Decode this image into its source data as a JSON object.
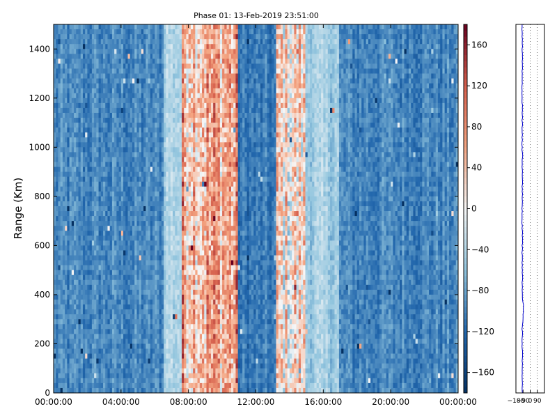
{
  "chart_data": [
    {
      "type": "heatmap",
      "title": "Phase 01: 13-Feb-2019 23:51:00",
      "xlabel": "",
      "ylabel": "Range (Km)",
      "x_ticks": [
        "00:00:00",
        "04:00:00",
        "08:00:00",
        "12:00:00",
        "16:00:00",
        "20:00:00",
        "00:00:00"
      ],
      "y_ticks": [
        0,
        200,
        400,
        600,
        800,
        1000,
        1200,
        1400
      ],
      "xlim_hours": [
        0,
        24
      ],
      "ylim": [
        0,
        1500
      ],
      "colormap": "RdBu_r",
      "value_range": [
        -180,
        180
      ],
      "description_bands": [
        {
          "from_hour": 0,
          "to_hour": 6.5,
          "level": -100
        },
        {
          "from_hour": 6.5,
          "to_hour": 7.6,
          "level": -40
        },
        {
          "from_hour": 7.6,
          "to_hour": 11.0,
          "level": 60
        },
        {
          "from_hour": 11.0,
          "to_hour": 13.2,
          "level": -110
        },
        {
          "from_hour": 13.2,
          "to_hour": 15.0,
          "level": 20
        },
        {
          "from_hour": 15.0,
          "to_hour": 17.0,
          "level": -50
        },
        {
          "from_hour": 17.0,
          "to_hour": 24,
          "level": -100
        }
      ],
      "grid": false
    },
    {
      "type": "colorbar",
      "ticks": [
        160,
        120,
        80,
        40,
        0,
        -40,
        -80,
        -120,
        -160
      ],
      "range": [
        -180,
        180
      ]
    },
    {
      "type": "line",
      "x_ticks": [
        "−180",
        "−90",
        "0",
        "90"
      ],
      "xlim": [
        -180,
        180
      ],
      "ylim": [
        0,
        1500
      ],
      "series_mean": -100,
      "grid": "vertical-dotted"
    }
  ],
  "colors": {
    "cold_dark": "#053061",
    "cold": "#2166ac",
    "cold_light": "#92c5de",
    "neutral": "#f7f7f7",
    "warm_light": "#f4a582",
    "warm": "#d6604d",
    "warm_dark": "#67001f",
    "profile_line": "#0000cc"
  }
}
